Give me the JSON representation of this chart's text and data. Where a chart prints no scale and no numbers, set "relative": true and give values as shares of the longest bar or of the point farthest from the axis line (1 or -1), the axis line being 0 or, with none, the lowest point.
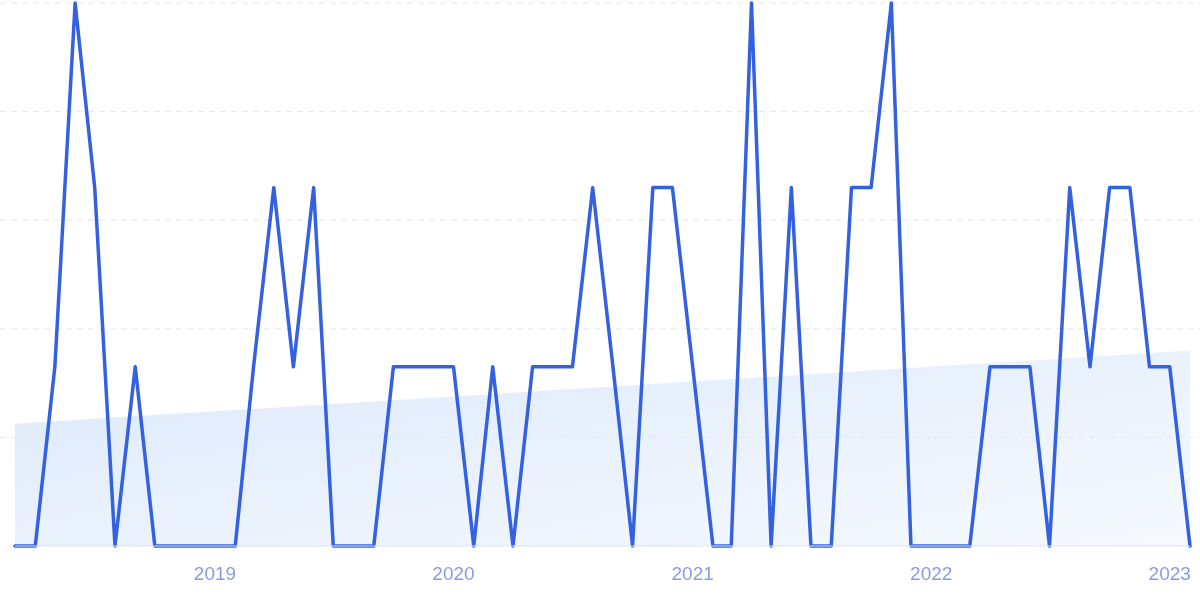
{
  "chart_data": {
    "type": "line",
    "relative": true,
    "grid": "y",
    "x": [
      "2018-03",
      "2018-04",
      "2018-05",
      "2018-06",
      "2018-07",
      "2018-08",
      "2018-09",
      "2018-10",
      "2018-11",
      "2018-12",
      "2019-01",
      "2019-02",
      "2019-03",
      "2019-04",
      "2019-05",
      "2019-06",
      "2019-07",
      "2019-08",
      "2019-09",
      "2019-10",
      "2019-11",
      "2019-12",
      "2020-01",
      "2020-02",
      "2020-03",
      "2020-04",
      "2020-05",
      "2020-06",
      "2020-07",
      "2020-08",
      "2020-09",
      "2020-10",
      "2020-11",
      "2020-12",
      "2021-01",
      "2021-02",
      "2021-03",
      "2021-04",
      "2021-05",
      "2021-06",
      "2021-07",
      "2021-08",
      "2021-09",
      "2021-10",
      "2021-11",
      "2021-12",
      "2022-01",
      "2022-02",
      "2022-03",
      "2022-04",
      "2022-05",
      "2022-06",
      "2022-07",
      "2022-08",
      "2022-09",
      "2022-10",
      "2022-11",
      "2022-12",
      "2023-01",
      "2023-02"
    ],
    "xlim": [
      "2018-03",
      "2023-02"
    ],
    "xticks": [
      {
        "value": "2019-01",
        "label": "2019"
      },
      {
        "value": "2020-01",
        "label": "2020"
      },
      {
        "value": "2021-01",
        "label": "2021"
      },
      {
        "value": "2022-01",
        "label": "2022"
      },
      {
        "value": "2023-01",
        "label": "2023"
      }
    ],
    "series": [
      {
        "type": "area",
        "color": "#dce9fb",
        "x": [
          "2018-03",
          "2023-02"
        ],
        "values": [
          0.225,
          0.36
        ]
      },
      {
        "color": "#3461e0",
        "values": [
          0,
          0,
          0.33,
          1,
          0.66,
          0,
          0.33,
          0,
          0,
          0,
          0,
          0,
          0.33,
          0.66,
          0.33,
          0.66,
          0,
          0,
          0,
          0.33,
          0.33,
          0.33,
          0.33,
          0,
          0.33,
          0,
          0.33,
          0.33,
          0.33,
          0.66,
          0.33,
          0,
          0.66,
          0.66,
          0.33,
          0,
          0,
          1,
          0,
          0.66,
          0,
          0,
          0.66,
          0.66,
          1,
          0,
          0,
          0,
          0,
          0.33,
          0.33,
          0.33,
          0,
          0.66,
          0.33,
          0.66,
          0.66,
          0.33,
          0.33,
          0
        ]
      }
    ]
  }
}
